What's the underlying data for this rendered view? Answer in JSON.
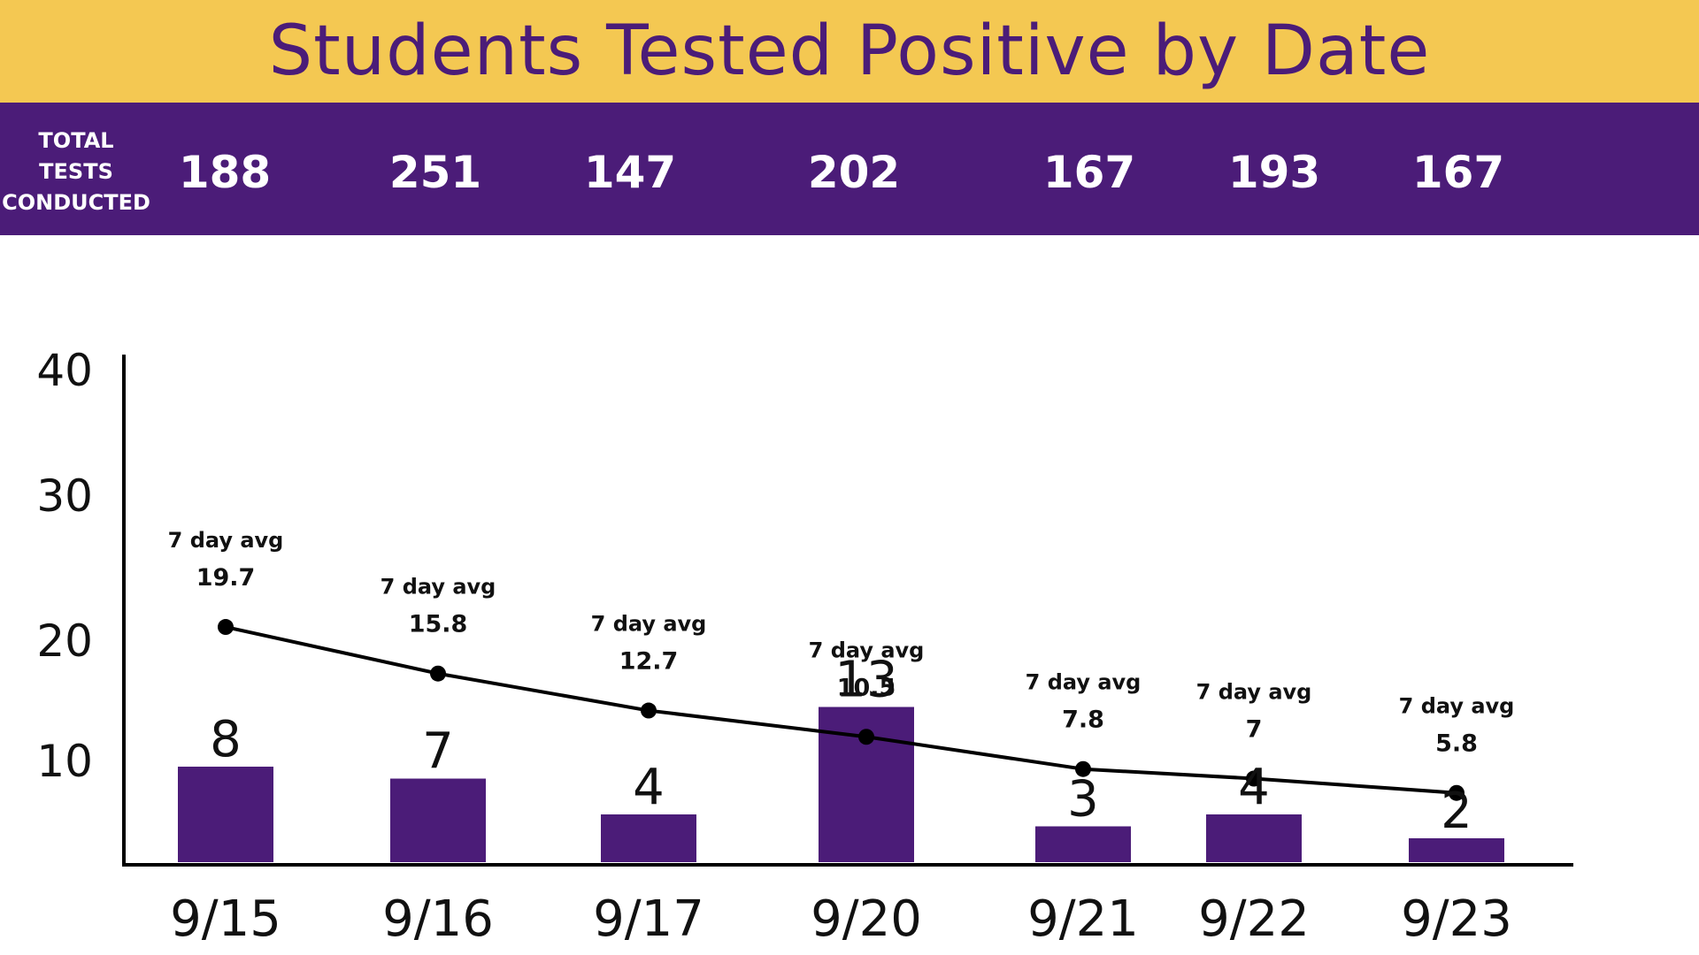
{
  "header": {
    "title": "Students Tested Positive by Date"
  },
  "totals": {
    "label_lines": [
      "TOTAL",
      "TESTS",
      "CONDUCTED"
    ],
    "values": [
      "188",
      "251",
      "147",
      "202",
      "167",
      "193",
      "167"
    ]
  },
  "colors": {
    "accent_yellow": "#f4c852",
    "brand_purple": "#4b1c78",
    "line_black": "#000000"
  },
  "chart_data": {
    "type": "bar",
    "categories": [
      "9/15",
      "9/16",
      "9/17",
      "9/20",
      "9/21",
      "9/22",
      "9/23"
    ],
    "series": [
      {
        "values": [
          8,
          7,
          4,
          13,
          3,
          4,
          2
        ]
      },
      {
        "values": [
          19.7,
          15.8,
          12.7,
          10.5,
          7.8,
          7,
          5.8
        ]
      }
    ],
    "bar_labels": [
      "8",
      "7",
      "4",
      "13",
      "3",
      "4",
      "2"
    ],
    "avg_caption": "7 day avg",
    "avg_labels": [
      "19.7",
      "15.8",
      "12.7",
      "10.5",
      "7.8",
      "7",
      "5.8"
    ],
    "y_ticks": [
      "10",
      "20",
      "30",
      "40"
    ],
    "ylim": [
      0,
      40
    ],
    "grid": false
  }
}
